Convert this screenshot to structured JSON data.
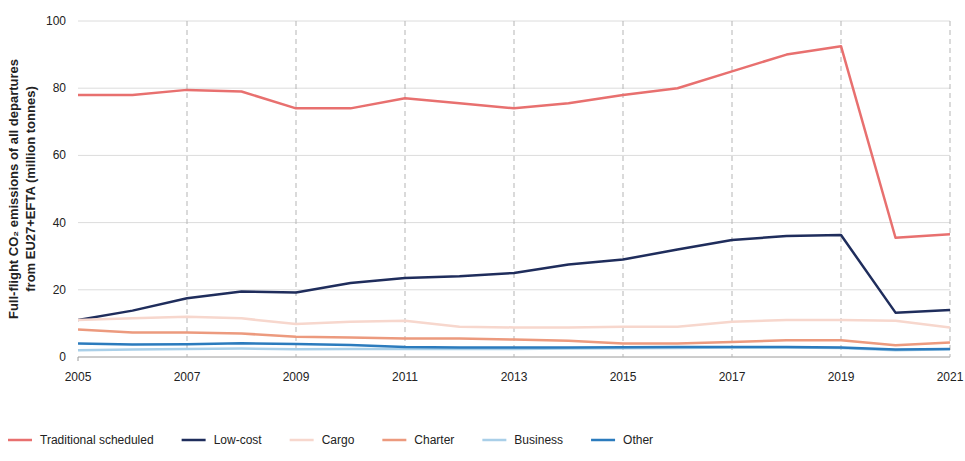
{
  "chart_data": {
    "type": "line",
    "y_label": [
      "Full-flight CO₂ emissions of all departures",
      "from EU27+EFTA (million tonnes)"
    ],
    "x": [
      2005,
      2006,
      2007,
      2008,
      2009,
      2010,
      2011,
      2012,
      2013,
      2014,
      2015,
      2016,
      2017,
      2018,
      2019,
      2020,
      2021
    ],
    "xlim": [
      2005,
      2021
    ],
    "xticks": [
      2005,
      2007,
      2009,
      2011,
      2013,
      2015,
      2017,
      2019,
      2021
    ],
    "ylim": [
      0,
      100
    ],
    "yticks": [
      0,
      20,
      40,
      60,
      80,
      100
    ],
    "grid": true,
    "legend": "bottom",
    "series": [
      {
        "name": "Traditional scheduled",
        "color": "#e8706f",
        "values": [
          78,
          78,
          79.5,
          79,
          74,
          74,
          77,
          75.5,
          74,
          75.5,
          78,
          80,
          85,
          90,
          92.5,
          35.5,
          36.5
        ]
      },
      {
        "name": "Low-cost",
        "color": "#1f2d5c",
        "values": [
          11,
          13.8,
          17.5,
          19.5,
          19.2,
          22,
          23.5,
          24,
          25,
          27.5,
          29,
          32,
          34.8,
          36,
          36.3,
          13.2,
          14
        ]
      },
      {
        "name": "Cargo",
        "color": "#f7d7cd",
        "values": [
          11,
          11.5,
          12,
          11.5,
          9.8,
          10.5,
          10.8,
          9,
          8.8,
          8.8,
          9,
          9,
          10.5,
          11,
          11,
          10.8,
          8.8
        ]
      },
      {
        "name": "Charter",
        "color": "#ec9a7e",
        "values": [
          8.2,
          7.3,
          7.3,
          7,
          6,
          5.8,
          5.5,
          5.5,
          5.2,
          4.8,
          4,
          4,
          4.5,
          5,
          5,
          3.5,
          4.3
        ]
      },
      {
        "name": "Business",
        "color": "#a9cfe8",
        "values": [
          2,
          2.2,
          2.4,
          2.5,
          2.3,
          2.4,
          2.4,
          2.4,
          2.4,
          2.5,
          2.6,
          2.7,
          2.8,
          2.8,
          2.7,
          2,
          2.3
        ]
      },
      {
        "name": "Other",
        "color": "#2b7bbd",
        "values": [
          4,
          3.7,
          3.8,
          4.1,
          3.9,
          3.6,
          3,
          2.8,
          2.8,
          2.8,
          2.9,
          3,
          3,
          3,
          2.8,
          2.2,
          2.4
        ]
      }
    ]
  }
}
